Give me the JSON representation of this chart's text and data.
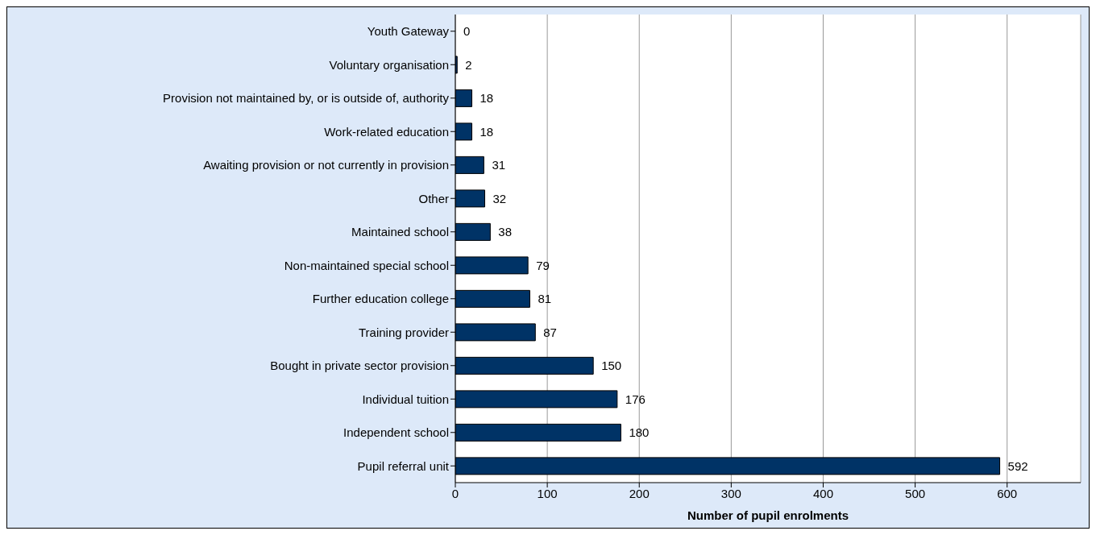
{
  "chart_data": {
    "type": "bar",
    "orientation": "horizontal",
    "xlabel": "Number of pupil enrolments",
    "categories": [
      "Youth Gateway",
      "Voluntary organisation",
      "Provision not maintained by, or is outside of, authority",
      "Work-related education",
      "Awaiting provision or not currently in provision",
      "Other",
      "Maintained school",
      "Non-maintained special school",
      "Further education college",
      "Training provider",
      "Bought in private sector provision",
      "Individual tuition",
      "Independent school",
      "Pupil referral unit"
    ],
    "values": [
      0,
      2,
      18,
      18,
      31,
      32,
      38,
      79,
      81,
      87,
      150,
      176,
      180,
      592
    ],
    "color": "#003366",
    "xlim": [
      0,
      680
    ],
    "xticks": [
      0,
      100,
      200,
      300,
      400,
      500,
      600
    ],
    "grid": "x",
    "data_labels": true
  }
}
